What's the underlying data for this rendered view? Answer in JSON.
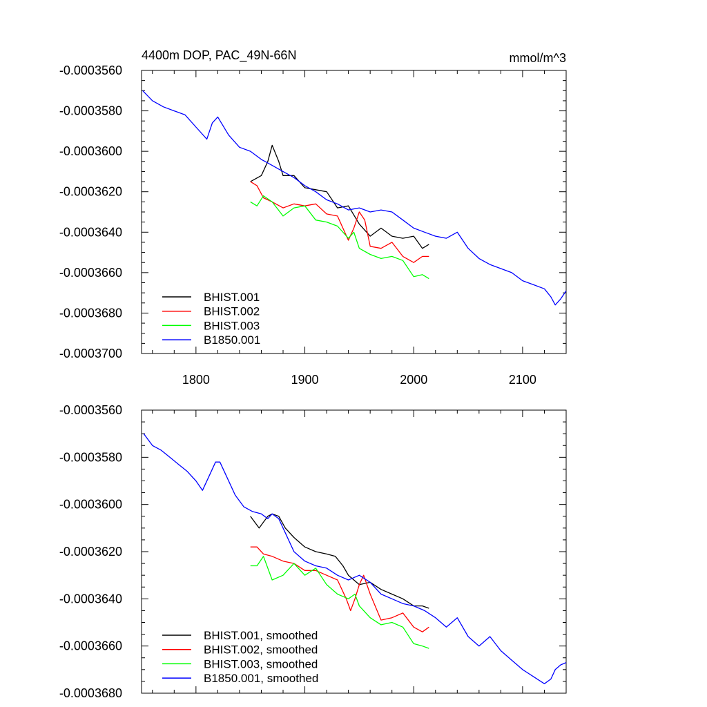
{
  "chart_data": [
    {
      "type": "line",
      "title": "4400m DOP, PAC_49N-66N",
      "units": "mmol/m^3",
      "xlabel": "",
      "ylabel": "",
      "xlim": [
        1750,
        2140
      ],
      "ylim": [
        -0.00037,
        -0.000356
      ],
      "xticks": [
        1800,
        1900,
        2000,
        2100
      ],
      "yticks": [
        -0.000356,
        -0.000358,
        -0.00036,
        -0.000362,
        -0.000364,
        -0.000366,
        -0.000368,
        -0.00037
      ],
      "ytick_labels": [
        "-0.0003560",
        "-0.0003580",
        "-0.0003600",
        "-0.0003620",
        "-0.0003640",
        "-0.0003660",
        "-0.0003680",
        "-0.0003700"
      ],
      "xtick_labels": [
        "1800",
        "1900",
        "2000",
        "2100"
      ],
      "grid": false,
      "legend_position": "bottom-left",
      "series": [
        {
          "name": "BHIST.001",
          "color": "#000000",
          "x": [
            1850,
            1860,
            1866,
            1870,
            1876,
            1880,
            1890,
            1900,
            1910,
            1920,
            1930,
            1940,
            1950,
            1960,
            1970,
            1980,
            1990,
            2000,
            2008,
            2014
          ],
          "y": [
            -0.0003615,
            -0.0003612,
            -0.0003605,
            -0.0003597,
            -0.0003605,
            -0.0003612,
            -0.0003612,
            -0.0003618,
            -0.0003619,
            -0.000362,
            -0.0003628,
            -0.0003627,
            -0.0003636,
            -0.0003642,
            -0.0003638,
            -0.0003642,
            -0.0003643,
            -0.0003642,
            -0.0003648,
            -0.0003646
          ]
        },
        {
          "name": "BHIST.002",
          "color": "#ff0000",
          "x": [
            1850,
            1856,
            1862,
            1870,
            1880,
            1890,
            1900,
            1910,
            1920,
            1930,
            1940,
            1945,
            1950,
            1955,
            1960,
            1970,
            1980,
            1990,
            2000,
            2008,
            2014
          ],
          "y": [
            -0.0003615,
            -0.0003617,
            -0.0003623,
            -0.0003625,
            -0.0003628,
            -0.0003626,
            -0.0003627,
            -0.0003626,
            -0.0003631,
            -0.0003632,
            -0.0003644,
            -0.0003638,
            -0.000363,
            -0.0003634,
            -0.0003647,
            -0.0003648,
            -0.0003645,
            -0.0003652,
            -0.0003655,
            -0.0003652,
            -0.0003652
          ]
        },
        {
          "name": "BHIST.003",
          "color": "#00ff00",
          "x": [
            1850,
            1856,
            1862,
            1870,
            1880,
            1890,
            1900,
            1910,
            1920,
            1930,
            1940,
            1945,
            1950,
            1960,
            1970,
            1980,
            1990,
            2000,
            2008,
            2014
          ],
          "y": [
            -0.0003625,
            -0.0003627,
            -0.0003622,
            -0.0003625,
            -0.0003632,
            -0.0003628,
            -0.0003627,
            -0.0003634,
            -0.0003635,
            -0.0003637,
            -0.0003643,
            -0.000364,
            -0.0003648,
            -0.0003651,
            -0.0003653,
            -0.0003652,
            -0.0003654,
            -0.0003662,
            -0.0003661,
            -0.0003663
          ]
        },
        {
          "name": "B1850.001",
          "color": "#0000ff",
          "x": [
            1751,
            1760,
            1770,
            1780,
            1790,
            1800,
            1810,
            1815,
            1820,
            1830,
            1840,
            1850,
            1860,
            1870,
            1880,
            1890,
            1900,
            1910,
            1920,
            1930,
            1940,
            1950,
            1960,
            1970,
            1980,
            1990,
            2000,
            2010,
            2020,
            2030,
            2040,
            2050,
            2060,
            2070,
            2080,
            2090,
            2100,
            2110,
            2120,
            2126,
            2130,
            2135,
            2140
          ],
          "y": [
            -0.000357,
            -0.0003575,
            -0.0003578,
            -0.000358,
            -0.0003582,
            -0.0003588,
            -0.0003594,
            -0.0003586,
            -0.0003583,
            -0.0003592,
            -0.0003598,
            -0.00036,
            -0.0003604,
            -0.0003607,
            -0.000361,
            -0.0003613,
            -0.0003617,
            -0.000362,
            -0.0003624,
            -0.0003626,
            -0.0003629,
            -0.0003628,
            -0.000363,
            -0.0003629,
            -0.000363,
            -0.0003634,
            -0.0003638,
            -0.000364,
            -0.0003642,
            -0.0003643,
            -0.000364,
            -0.0003648,
            -0.0003653,
            -0.0003656,
            -0.0003658,
            -0.000366,
            -0.0003664,
            -0.0003666,
            -0.0003668,
            -0.0003672,
            -0.0003676,
            -0.0003673,
            -0.0003669
          ]
        }
      ]
    },
    {
      "type": "line",
      "title": "",
      "xlabel": "",
      "ylabel": "",
      "xlim": [
        1750,
        2140
      ],
      "ylim": [
        -0.000368,
        -0.000356
      ],
      "xticks": [
        1800,
        1900,
        2000,
        2100
      ],
      "yticks": [
        -0.000356,
        -0.000358,
        -0.00036,
        -0.000362,
        -0.000364,
        -0.000366,
        -0.000368
      ],
      "ytick_labels": [
        "-0.0003560",
        "-0.0003580",
        "-0.0003600",
        "-0.0003620",
        "-0.0003640",
        "-0.0003660",
        "-0.0003680"
      ],
      "grid": false,
      "legend_position": "bottom-left",
      "series": [
        {
          "name": "BHIST.001, smoothed",
          "color": "#000000",
          "x": [
            1850,
            1858,
            1866,
            1870,
            1876,
            1882,
            1890,
            1900,
            1910,
            1920,
            1928,
            1935,
            1940,
            1950,
            1960,
            1970,
            1980,
            1990,
            2000,
            2008,
            2014
          ],
          "y": [
            -0.0003605,
            -0.000361,
            -0.0003605,
            -0.0003604,
            -0.0003605,
            -0.000361,
            -0.0003614,
            -0.0003618,
            -0.000362,
            -0.0003621,
            -0.0003622,
            -0.0003626,
            -0.000363,
            -0.0003634,
            -0.0003633,
            -0.0003636,
            -0.0003638,
            -0.000364,
            -0.0003643,
            -0.0003643,
            -0.0003644
          ]
        },
        {
          "name": "BHIST.002, smoothed",
          "color": "#ff0000",
          "x": [
            1850,
            1856,
            1862,
            1870,
            1880,
            1890,
            1900,
            1910,
            1920,
            1930,
            1938,
            1942,
            1946,
            1950,
            1954,
            1960,
            1970,
            1980,
            1990,
            2000,
            2008,
            2014
          ],
          "y": [
            -0.0003618,
            -0.0003618,
            -0.0003621,
            -0.0003622,
            -0.0003624,
            -0.0003625,
            -0.0003628,
            -0.0003628,
            -0.000363,
            -0.0003632,
            -0.000364,
            -0.0003645,
            -0.000364,
            -0.0003634,
            -0.000363,
            -0.0003638,
            -0.0003649,
            -0.0003648,
            -0.0003646,
            -0.0003652,
            -0.0003654,
            -0.0003652
          ]
        },
        {
          "name": "BHIST.003, smoothed",
          "color": "#00ff00",
          "x": [
            1850,
            1856,
            1862,
            1870,
            1880,
            1890,
            1900,
            1910,
            1920,
            1930,
            1940,
            1946,
            1950,
            1960,
            1970,
            1980,
            1990,
            2000,
            2008,
            2014
          ],
          "y": [
            -0.0003626,
            -0.0003626,
            -0.0003622,
            -0.0003632,
            -0.000363,
            -0.0003625,
            -0.000363,
            -0.0003627,
            -0.0003634,
            -0.0003638,
            -0.000364,
            -0.0003638,
            -0.0003643,
            -0.0003648,
            -0.0003651,
            -0.000365,
            -0.0003652,
            -0.0003659,
            -0.000366,
            -0.0003661
          ]
        },
        {
          "name": "B1850.001, smoothed",
          "color": "#0000ff",
          "x": [
            1752,
            1760,
            1768,
            1776,
            1784,
            1792,
            1800,
            1806,
            1812,
            1818,
            1822,
            1828,
            1836,
            1844,
            1852,
            1860,
            1866,
            1870,
            1876,
            1882,
            1890,
            1900,
            1910,
            1920,
            1930,
            1940,
            1950,
            1960,
            1970,
            1980,
            1990,
            2000,
            2010,
            2020,
            2030,
            2040,
            2050,
            2060,
            2070,
            2080,
            2090,
            2100,
            2110,
            2120,
            2126,
            2130,
            2135,
            2140
          ],
          "y": [
            -0.000357,
            -0.0003575,
            -0.0003577,
            -0.000358,
            -0.0003583,
            -0.0003586,
            -0.000359,
            -0.0003594,
            -0.0003588,
            -0.0003582,
            -0.0003582,
            -0.0003588,
            -0.0003596,
            -0.0003601,
            -0.0003603,
            -0.0003604,
            -0.0003606,
            -0.0003604,
            -0.0003606,
            -0.0003612,
            -0.000362,
            -0.0003624,
            -0.0003626,
            -0.0003627,
            -0.000363,
            -0.0003632,
            -0.000363,
            -0.0003633,
            -0.0003638,
            -0.000364,
            -0.0003642,
            -0.0003643,
            -0.0003645,
            -0.0003648,
            -0.0003652,
            -0.0003648,
            -0.0003656,
            -0.000366,
            -0.0003656,
            -0.0003662,
            -0.0003666,
            -0.000367,
            -0.0003673,
            -0.0003676,
            -0.0003674,
            -0.000367,
            -0.0003668,
            -0.0003667
          ]
        }
      ]
    }
  ]
}
